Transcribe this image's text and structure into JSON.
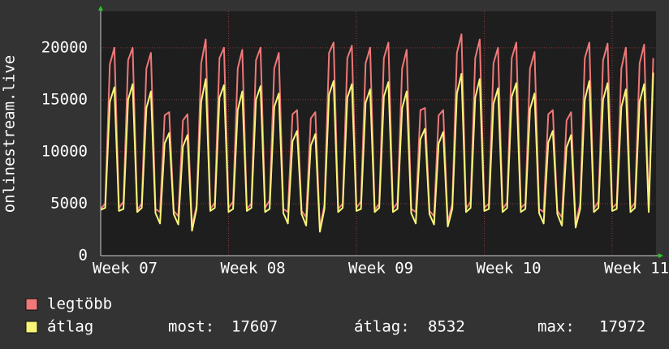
{
  "chart_data": {
    "type": "line",
    "y_label": "onlinestream.live",
    "x": [
      0,
      0.25,
      0.5,
      0.75,
      1,
      1.25,
      1.5,
      1.75,
      2,
      2.25,
      2.5,
      2.75,
      3,
      3.25,
      3.5,
      3.75,
      4,
      4.25,
      4.5,
      4.75,
      5,
      5.25,
      5.5,
      5.75,
      6,
      6.25,
      6.5,
      6.75,
      7,
      7.25,
      7.5,
      7.75,
      8,
      8.25,
      8.5,
      8.75,
      9,
      9.25,
      9.5,
      9.75,
      10,
      10.25,
      10.5,
      10.75,
      11,
      11.25,
      11.5,
      11.75,
      12,
      12.25,
      12.5,
      12.75,
      13,
      13.25,
      13.5,
      13.75,
      14,
      14.25,
      14.5,
      14.75,
      15,
      15.25,
      15.5,
      15.75,
      16,
      16.25,
      16.5,
      16.75,
      17,
      17.25,
      17.5,
      17.75,
      18,
      18.25,
      18.5,
      18.75,
      19,
      19.25,
      19.5,
      19.75,
      20,
      20.25,
      20.5,
      20.75,
      21,
      21.25,
      21.5,
      21.75,
      22,
      22.25,
      22.5,
      22.75,
      23,
      23.25,
      23.5,
      23.75,
      24,
      24.25,
      24.5,
      24.75,
      25,
      25.25,
      25.5,
      25.75,
      26,
      26.25,
      26.5,
      26.75,
      27,
      27.25,
      27.5,
      27.75,
      28,
      28.25,
      28.5,
      28.75,
      29,
      29.25,
      29.5,
      29.75,
      30,
      30.25
    ],
    "series": [
      {
        "name": "legtöbb",
        "color": "#f07878",
        "values": [
          4500,
          5000,
          18400,
          20000,
          4600,
          5200,
          18800,
          20000,
          4400,
          5000,
          18000,
          19500,
          4500,
          4200,
          13500,
          13800,
          4300,
          3800,
          13000,
          13600,
          2800,
          4800,
          18500,
          20800,
          4500,
          5100,
          19000,
          20000,
          4600,
          5200,
          18000,
          19800,
          4500,
          5000,
          18800,
          20000,
          4600,
          5300,
          18000,
          19500,
          4500,
          4200,
          13600,
          14000,
          4300,
          3700,
          13200,
          13800,
          2600,
          4900,
          19500,
          20500,
          4500,
          5000,
          19000,
          20200,
          4600,
          5200,
          18500,
          20000,
          4400,
          5000,
          19000,
          20500,
          4500,
          5100,
          18000,
          19800,
          4500,
          4200,
          14000,
          14200,
          4300,
          3800,
          13500,
          14000,
          3200,
          5000,
          19500,
          21300,
          4500,
          5200,
          19000,
          20800,
          4600,
          5000,
          18500,
          20000,
          4500,
          5100,
          19000,
          20500,
          4600,
          5000,
          18000,
          19600,
          4500,
          4200,
          13600,
          14000,
          4300,
          3700,
          13000,
          13800,
          3000,
          5000,
          19000,
          20500,
          4500,
          5200,
          18800,
          20400,
          4600,
          5000,
          18000,
          20000,
          4500,
          5100,
          18500,
          20300,
          4500,
          19000
        ]
      },
      {
        "name": "átlag",
        "color": "#f8f478",
        "values": [
          4400,
          4600,
          14800,
          16200,
          4300,
          4500,
          15000,
          16500,
          4200,
          4600,
          14200,
          15800,
          4100,
          3100,
          10800,
          11800,
          4000,
          3000,
          10500,
          11600,
          2400,
          4500,
          14800,
          17000,
          4300,
          4600,
          15200,
          16400,
          4200,
          4500,
          14000,
          15800,
          4300,
          4600,
          15000,
          16300,
          4200,
          4500,
          14300,
          15600,
          4100,
          3100,
          11000,
          12000,
          4000,
          2900,
          10600,
          11700,
          2300,
          4500,
          15500,
          16800,
          4200,
          4600,
          15200,
          16500,
          4300,
          4500,
          14700,
          16000,
          4200,
          4600,
          15300,
          16700,
          4200,
          4500,
          14200,
          15800,
          4100,
          3100,
          11200,
          12200,
          4000,
          3000,
          10800,
          11900,
          2800,
          4500,
          15600,
          17500,
          4200,
          4600,
          15200,
          17000,
          4300,
          4500,
          14600,
          16100,
          4200,
          4600,
          15300,
          16600,
          4200,
          4500,
          14100,
          15600,
          4100,
          3100,
          10900,
          12000,
          4000,
          2900,
          10400,
          11600,
          2700,
          4500,
          15000,
          16800,
          4200,
          4600,
          15000,
          16600,
          4300,
          4500,
          14300,
          16000,
          4200,
          4600,
          14800,
          16500,
          4200,
          17607
        ]
      }
    ],
    "legend_stats": [
      {
        "label": "most:",
        "value": 17607
      },
      {
        "label": "átlag:",
        "value": 8532
      },
      {
        "label": "max:",
        "value": 17972
      }
    ],
    "xlim": [
      0,
      30.4
    ],
    "ylim": [
      0,
      23500
    ],
    "xticks": [
      {
        "value": 0,
        "label": "Week 07"
      },
      {
        "value": 7,
        "label": "Week 08"
      },
      {
        "value": 14,
        "label": "Week 09"
      },
      {
        "value": 21,
        "label": "Week 10"
      },
      {
        "value": 28,
        "label": "Week 11"
      }
    ],
    "yticks": [
      0,
      5000,
      10000,
      15000,
      20000
    ],
    "grid": true
  }
}
